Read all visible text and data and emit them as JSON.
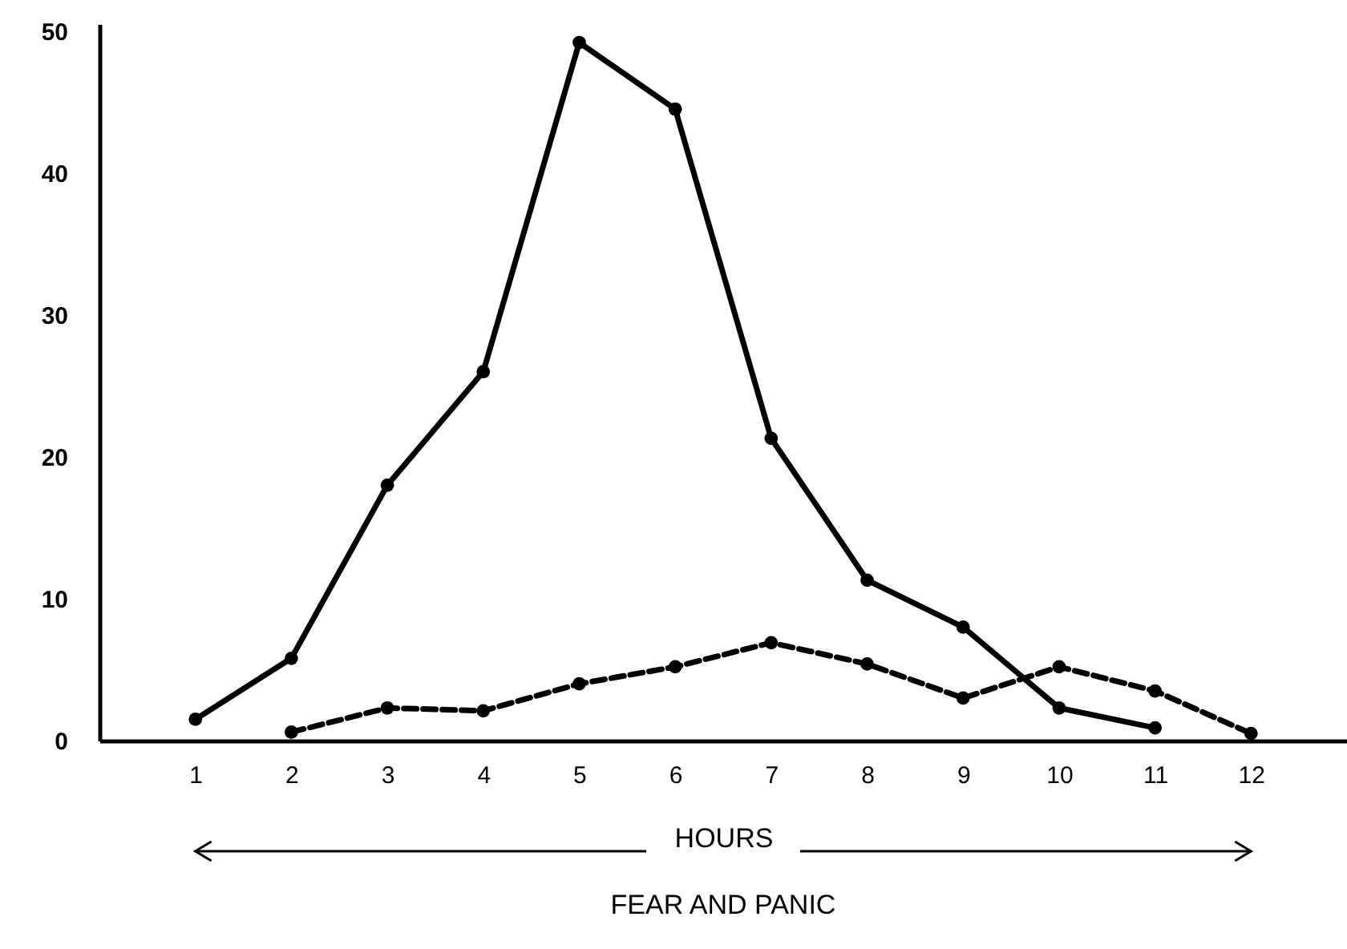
{
  "chart_data": {
    "type": "line",
    "title": "FEAR AND PANIC",
    "xlabel": "HOURS",
    "xlim": [
      0,
      13
    ],
    "xticks": [
      1,
      2,
      3,
      4,
      5,
      6,
      7,
      8,
      9,
      10,
      11,
      12
    ],
    "ylim": [
      0,
      50.5
    ],
    "yticks": [
      0,
      10,
      20,
      30,
      40,
      50
    ],
    "marker": "circle",
    "series": [
      {
        "color": "#000000",
        "line_style": "solid",
        "x": [
          1,
          2,
          3,
          4,
          5,
          6,
          7,
          8,
          9,
          10,
          11
        ],
        "values": [
          1.5,
          5.8,
          18,
          26,
          49.2,
          44.5,
          21.3,
          11.3,
          8,
          2.3,
          0.9
        ]
      },
      {
        "color": "#000000",
        "line_style": "dashed",
        "x": [
          2,
          3,
          4,
          5,
          6,
          7,
          8,
          9,
          10,
          11,
          12
        ],
        "values": [
          0.6,
          2.3,
          2.1,
          4,
          5.2,
          6.9,
          5.4,
          3,
          5.2,
          3.5,
          0.5
        ]
      }
    ]
  }
}
